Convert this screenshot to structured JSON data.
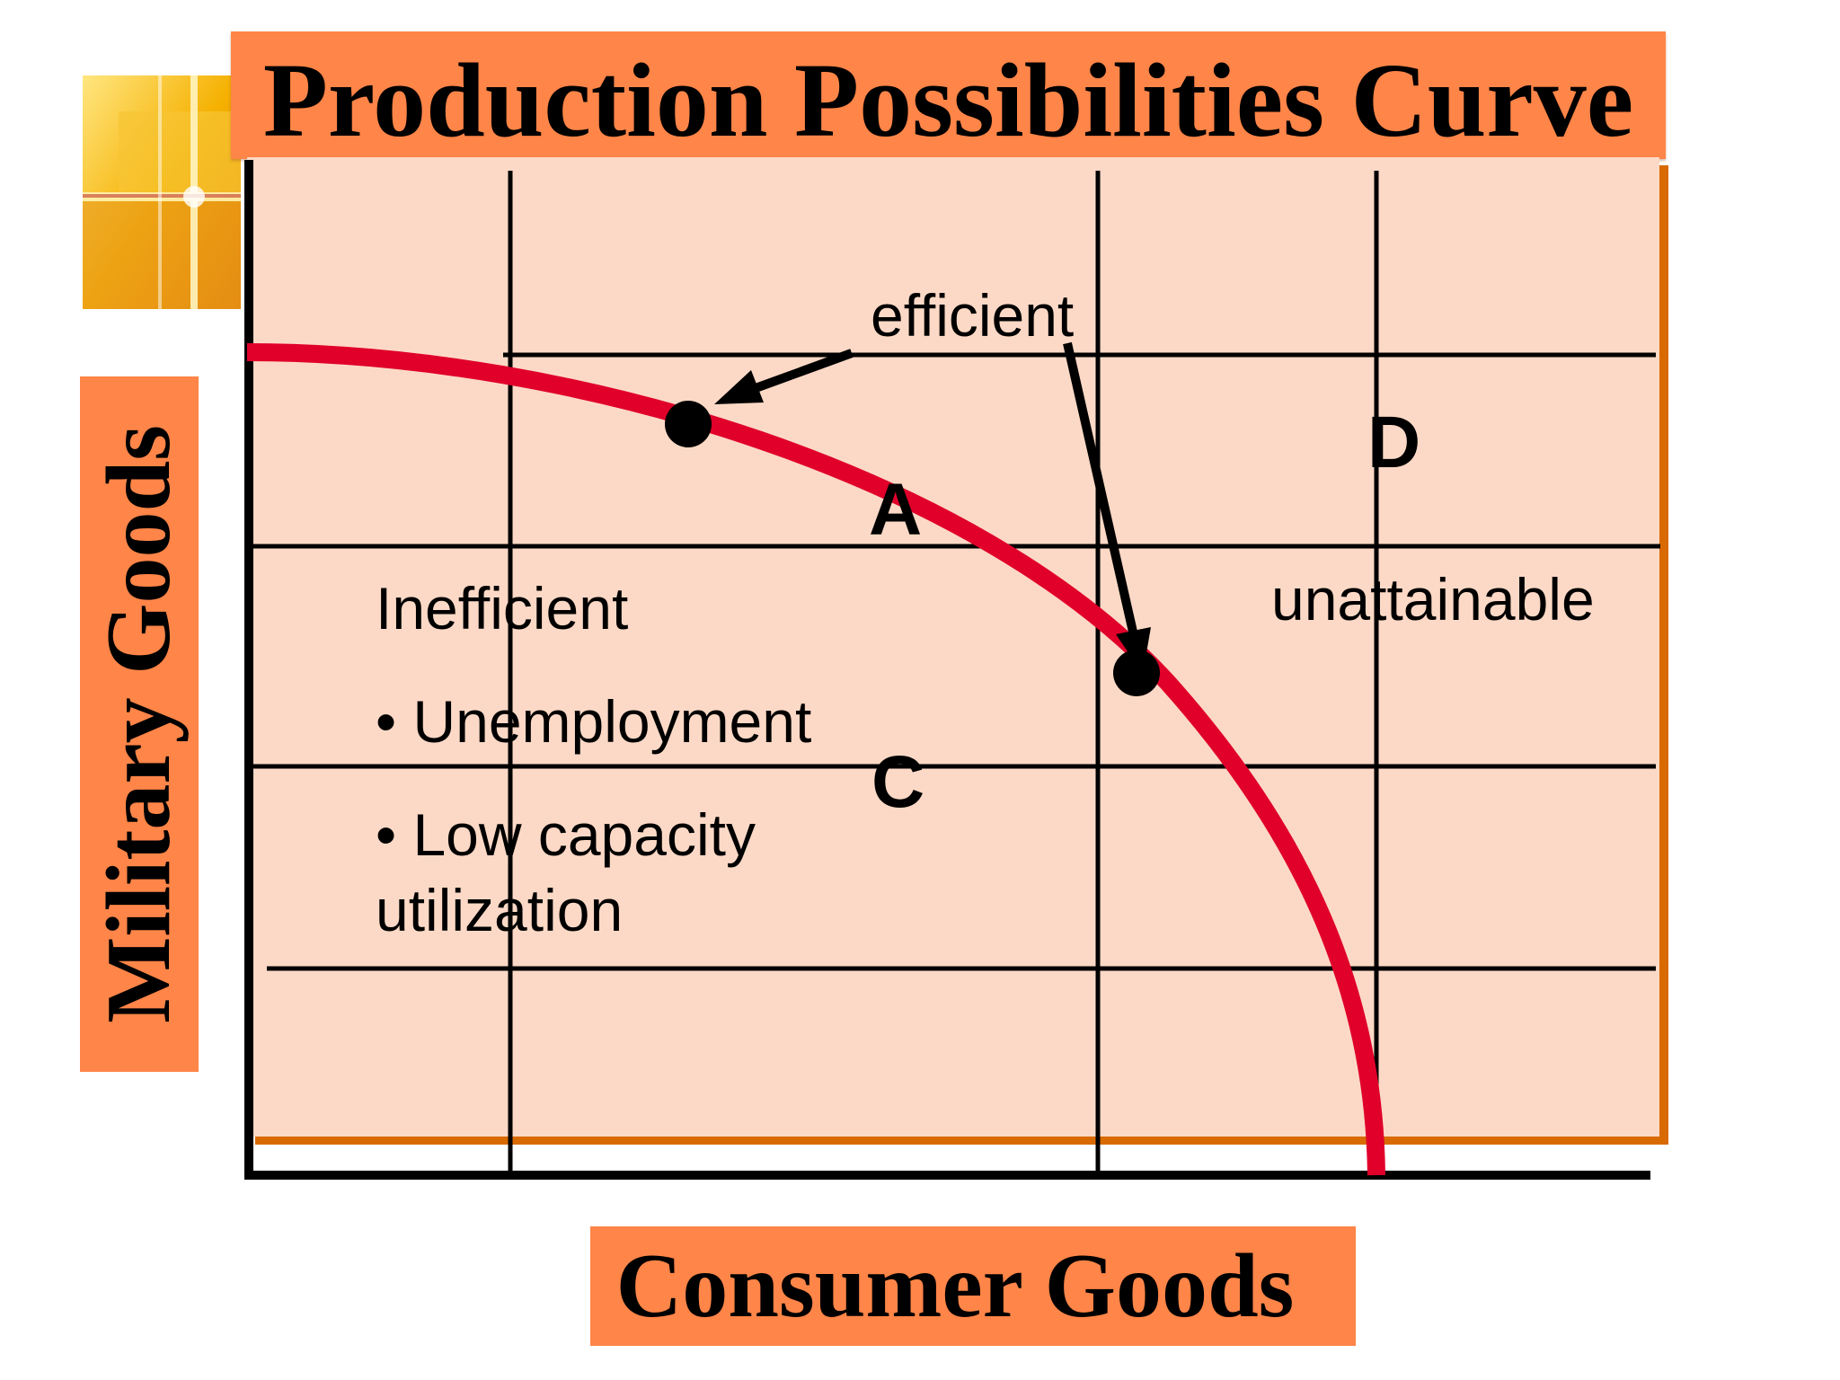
{
  "title": "Production Possibilities Curve",
  "axis": {
    "y_label": "Military Goods",
    "x_label": "Consumer Goods"
  },
  "labels": {
    "efficient": "efficient",
    "point_a": "A",
    "point_c": "C",
    "point_d": "D",
    "inefficient": "Inefficient",
    "bullet_unemployment": "• Unemployment",
    "bullet_low_capacity": "• Low capacity",
    "utilization": "utilization",
    "unattainable": "unattainable"
  },
  "icons": {
    "logo": "decorative-cross-logo-icon"
  },
  "colors": {
    "label_bg": "#ff8548",
    "plot_bg": "#fcd9c6",
    "curve": "#e0002a",
    "plot_shadow": "#d96a00",
    "grid": "#000000"
  }
}
